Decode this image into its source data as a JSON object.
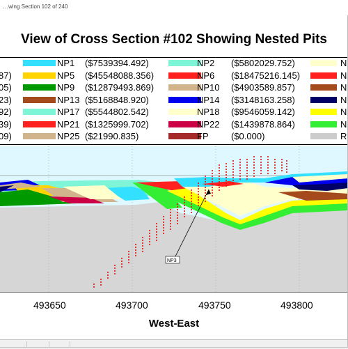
{
  "window": {
    "title": "…wing Section 102 of 240"
  },
  "chart": {
    "title": "View of Cross Section #102 Showing Nested Pits",
    "xlabel": "West-East",
    "xticks": [
      "493650",
      "493700",
      "493750",
      "493800"
    ],
    "callout": "NP3"
  },
  "legend": {
    "left_partial_values": [
      "87)",
      "05)",
      "23)",
      "92)",
      "39)",
      "09)"
    ],
    "col1": [
      {
        "name": "NP1",
        "value": "($7539394.492)",
        "color": "#33e0ff"
      },
      {
        "name": "NP5",
        "value": "($45548088.356)",
        "color": "#ffd400"
      },
      {
        "name": "NP9",
        "value": "($12879493.869)",
        "color": "#009900"
      },
      {
        "name": "NP13",
        "value": "($5168848.920)",
        "color": "#a54a1c"
      },
      {
        "name": "NP17",
        "value": "($5544802.542)",
        "color": "#7ff5d8"
      },
      {
        "name": "NP21",
        "value": "($1325999.702)",
        "color": "#ff2020"
      },
      {
        "name": "NP25",
        "value": "($21990.835)",
        "color": "#d2b48c"
      }
    ],
    "col2": [
      {
        "name": "NP2",
        "value": "($5802029.752)",
        "color": "#7ff5d8"
      },
      {
        "name": "NP6",
        "value": "($18475216.145)",
        "color": "#ff2020"
      },
      {
        "name": "NP10",
        "value": "($4903589.857)",
        "color": "#d2b48c"
      },
      {
        "name": "NP14",
        "value": "($3148163.258)",
        "color": "#0000ee"
      },
      {
        "name": "NP18",
        "value": "($9546059.142)",
        "color": "#ffffcc"
      },
      {
        "name": "NP22",
        "value": "($1439878.864)",
        "color": "#cc0044"
      },
      {
        "name": "FP",
        "value": "($0.000)",
        "color": "#a52a2a"
      }
    ],
    "col3_partial": [
      {
        "name": "N",
        "color": "#ffffcc"
      },
      {
        "name": "N",
        "color": "#ff2020"
      },
      {
        "name": "N",
        "color": "#a54a1c"
      },
      {
        "name": "N",
        "color": "#000066"
      },
      {
        "name": "N",
        "color": "#ffff00"
      },
      {
        "name": "N",
        "color": "#33ee33"
      },
      {
        "name": "Re",
        "color": "#cccccc"
      }
    ]
  },
  "colors": {
    "sky": "#dff8ff",
    "rock": "#d6d6d6",
    "pit_fill": "#ffffcc",
    "drill": "#e01010"
  }
}
